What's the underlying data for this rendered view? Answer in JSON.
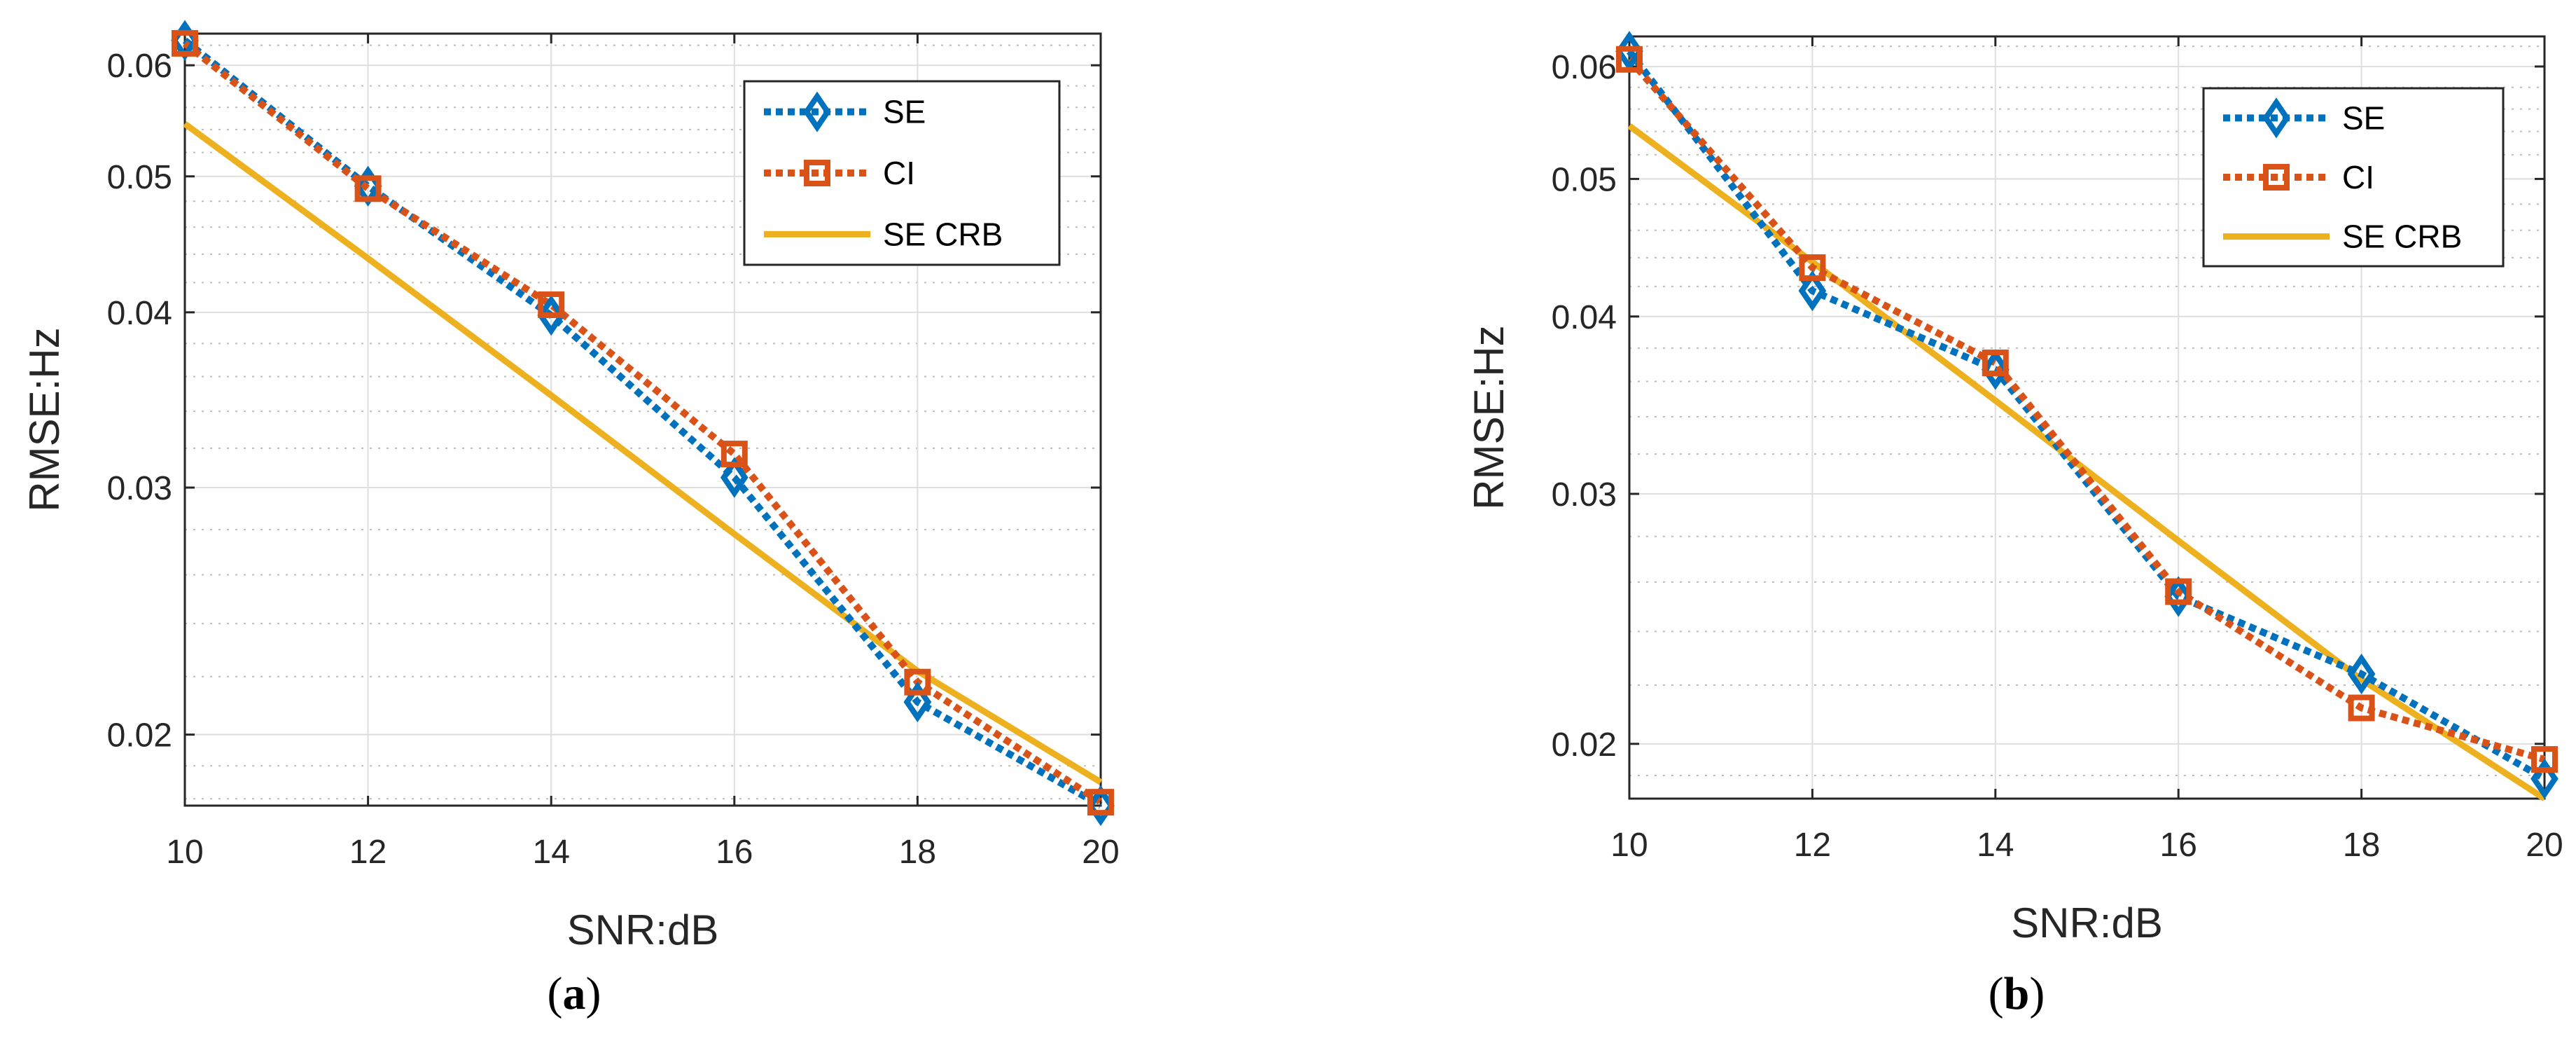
{
  "chart_data": [
    {
      "type": "line",
      "panel": "a",
      "caption_letter": "a",
      "xlabel": "SNR:dB",
      "ylabel": "RMSE:Hz",
      "yscale": "log",
      "xlim": [
        10,
        20
      ],
      "ylim": [
        0.0178,
        0.0632
      ],
      "grid": true,
      "legend_position": "top-right",
      "x": [
        10,
        12,
        14,
        16,
        18,
        20
      ],
      "x_ticks": [
        10,
        12,
        14,
        16,
        18,
        20
      ],
      "x_tick_labels": [
        "10",
        "12",
        "14",
        "16",
        "18",
        "20"
      ],
      "y_ticks": [
        0.02,
        0.03,
        0.04,
        0.05,
        0.06
      ],
      "y_tick_labels": [
        "0.02",
        "0.03",
        "0.04",
        "0.05",
        "0.06"
      ],
      "series": [
        {
          "name": "SE",
          "color": "#0072BD",
          "style": "dotted",
          "marker": "diamond",
          "values": [
            0.0625,
            0.0492,
            0.0398,
            0.0305,
            0.0211,
            0.0177
          ]
        },
        {
          "name": "CI",
          "color": "#D95319",
          "style": "dotted",
          "marker": "square",
          "values": [
            0.0622,
            0.049,
            0.0405,
            0.0317,
            0.0218,
            0.0179
          ]
        },
        {
          "name": "SE CRB",
          "color": "#EDB120",
          "style": "solid",
          "marker": "none",
          "values": [
            0.0545,
            0.0437,
            0.0349,
            0.0278,
            0.0222,
            0.0185
          ]
        }
      ]
    },
    {
      "type": "line",
      "panel": "b",
      "caption_letter": "b",
      "xlabel": "SNR:dB",
      "ylabel": "RMSE:Hz",
      "yscale": "log",
      "xlim": [
        10,
        20
      ],
      "ylim": [
        0.0183,
        0.063
      ],
      "grid": true,
      "legend_position": "top-right",
      "x": [
        10,
        12,
        14,
        16,
        18,
        20
      ],
      "x_ticks": [
        10,
        12,
        14,
        16,
        18,
        20
      ],
      "x_tick_labels": [
        "10",
        "12",
        "14",
        "16",
        "18",
        "20"
      ],
      "y_ticks": [
        0.02,
        0.03,
        0.04,
        0.05,
        0.06
      ],
      "y_tick_labels": [
        "0.02",
        "0.03",
        "0.04",
        "0.05",
        "0.06"
      ],
      "series": [
        {
          "name": "SE",
          "color": "#0072BD",
          "style": "dotted",
          "marker": "diamond",
          "values": [
            0.0615,
            0.0417,
            0.0367,
            0.0254,
            0.0224,
            0.0189
          ]
        },
        {
          "name": "CI",
          "color": "#D95319",
          "style": "dotted",
          "marker": "square",
          "values": [
            0.0607,
            0.0433,
            0.0371,
            0.0256,
            0.0212,
            0.0195
          ]
        },
        {
          "name": "SE CRB",
          "color": "#EDB120",
          "style": "solid",
          "marker": "none",
          "values": [
            0.0545,
            0.0437,
            0.0349,
            0.0278,
            0.0222,
            0.0183
          ]
        }
      ]
    }
  ]
}
